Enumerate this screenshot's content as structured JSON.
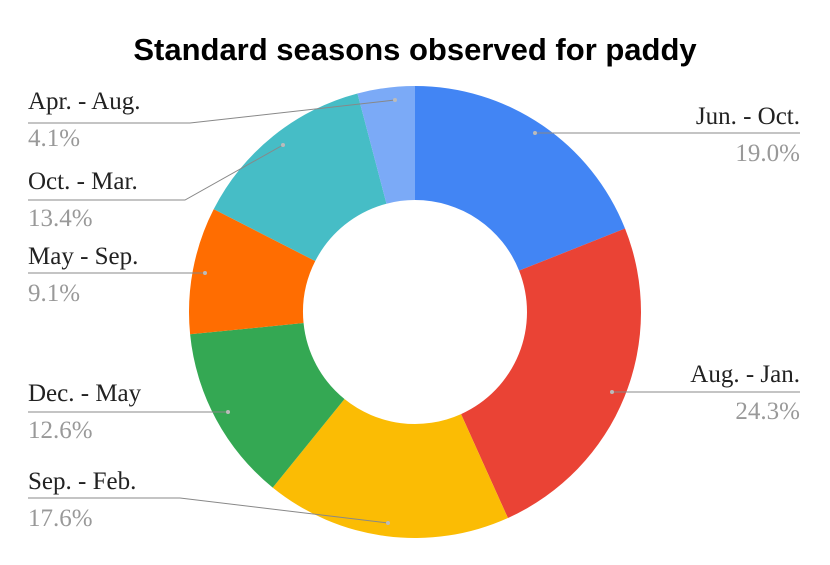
{
  "chart_data": {
    "type": "donut",
    "title": "Standard seasons observed for paddy",
    "categories": [
      "Jun. - Oct.",
      "Aug. - Jan.",
      "Sep. - Feb.",
      "Dec. - May",
      "May - Sep.",
      "Oct. - Mar.",
      "Apr. - Aug."
    ],
    "values": [
      19.0,
      24.3,
      17.6,
      12.6,
      9.1,
      13.4,
      4.1
    ],
    "value_labels": [
      "19.0%",
      "24.3%",
      "17.6%",
      "12.6%",
      "9.1%",
      "13.4%",
      "4.1%"
    ],
    "colors": [
      "#4285f4",
      "#ea4335",
      "#fbbc04",
      "#34a853",
      "#ff6d01",
      "#46bdc6",
      "#7baaf7"
    ]
  }
}
